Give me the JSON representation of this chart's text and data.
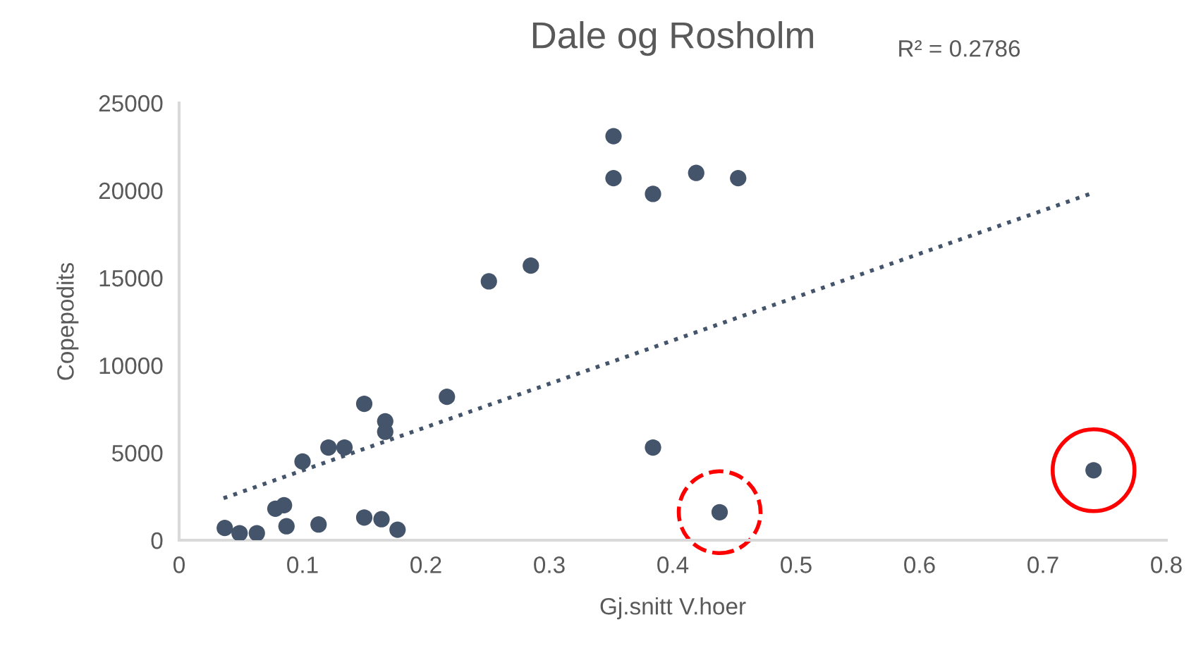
{
  "chart_data": {
    "type": "scatter",
    "title": "Dale og Rosholm",
    "xlabel": "Gj.snitt V.hoer",
    "ylabel": "Copepodits",
    "annotations": [
      "R² = 0.2786"
    ],
    "xlim": [
      0,
      0.8
    ],
    "xticks": [
      0,
      0.1,
      0.2,
      0.3,
      0.4,
      0.5,
      0.6,
      0.7,
      0.8
    ],
    "ylim": [
      0,
      25000
    ],
    "yticks": [
      0,
      5000,
      10000,
      15000,
      20000,
      25000
    ],
    "grid": false,
    "legend": false,
    "marker": "circle",
    "series": [
      {
        "color": "#44546a",
        "x": [
          0.037,
          0.049,
          0.063,
          0.078,
          0.085,
          0.087,
          0.1,
          0.113,
          0.121,
          0.134,
          0.15,
          0.15,
          0.164,
          0.167,
          0.167,
          0.177,
          0.217,
          0.251,
          0.285,
          0.352,
          0.352,
          0.384,
          0.419,
          0.453,
          0.384
        ],
        "values": [
          700,
          400,
          400,
          1800,
          2000,
          800,
          4500,
          900,
          5300,
          5300,
          7800,
          1300,
          1200,
          6800,
          6200,
          600,
          8200,
          14800,
          15700,
          23100,
          20700,
          19800,
          21000,
          20700,
          5300
        ]
      },
      {
        "color": "#44546a",
        "x": [
          0.438
        ],
        "values": [
          1600
        ],
        "line_style": "dashed"
      },
      {
        "color": "#44546a",
        "x": [
          0.741
        ],
        "values": [
          4000
        ],
        "line_style": "solid"
      },
      {
        "type": "line",
        "color": "#44546a",
        "marker": "none",
        "x": [
          0.036,
          0.738
        ],
        "values": [
          2400,
          19800
        ],
        "line_style": "dotted"
      }
    ]
  }
}
